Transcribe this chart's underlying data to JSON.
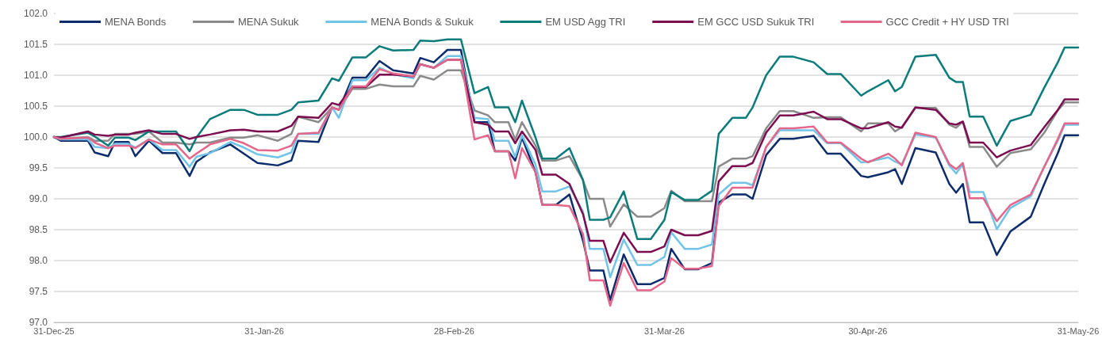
{
  "chart_data": {
    "type": "line",
    "x": [
      "2025-12-31",
      "2026-01-01",
      "2026-01-05",
      "2026-01-06",
      "2026-01-08",
      "2026-01-09",
      "2026-01-11",
      "2026-01-12",
      "2026-01-14",
      "2026-01-16",
      "2026-01-18",
      "2026-01-20",
      "2026-01-21",
      "2026-01-23",
      "2026-01-26",
      "2026-01-28",
      "2026-01-30",
      "2026-02-02",
      "2026-02-04",
      "2026-02-05",
      "2026-02-08",
      "2026-02-10",
      "2026-02-11",
      "2026-02-13",
      "2026-02-15",
      "2026-02-17",
      "2026-02-19",
      "2026-02-22",
      "2026-02-23",
      "2026-02-25",
      "2026-02-27",
      "2026-03-01",
      "2026-03-03",
      "2026-03-05",
      "2026-03-06",
      "2026-03-08",
      "2026-03-09",
      "2026-03-10",
      "2026-03-12",
      "2026-03-13",
      "2026-03-15",
      "2026-03-17",
      "2026-03-19",
      "2026-03-20",
      "2026-03-22",
      "2026-03-23",
      "2026-03-25",
      "2026-03-27",
      "2026-03-29",
      "2026-03-31",
      "2026-04-01",
      "2026-04-03",
      "2026-04-05",
      "2026-04-07",
      "2026-04-08",
      "2026-04-10",
      "2026-04-12",
      "2026-04-13",
      "2026-04-15",
      "2026-04-17",
      "2026-04-19",
      "2026-04-22",
      "2026-04-24",
      "2026-04-26",
      "2026-04-29",
      "2026-04-30",
      "2026-05-03",
      "2026-05-04",
      "2026-05-05",
      "2026-05-07",
      "2026-05-10",
      "2026-05-12",
      "2026-05-13",
      "2026-05-14",
      "2026-05-15",
      "2026-05-17",
      "2026-05-19",
      "2026-05-21",
      "2026-05-24",
      "2026-05-26",
      "2026-05-28",
      "2026-05-29",
      "2026-05-31"
    ],
    "series": [
      {
        "name": "MENA Bonds",
        "color": "#0d2c6b",
        "values": [
          100.0,
          99.94,
          99.94,
          99.75,
          99.69,
          99.92,
          99.92,
          99.69,
          99.94,
          99.74,
          99.74,
          99.37,
          99.6,
          99.75,
          99.88,
          99.73,
          99.58,
          99.54,
          99.62,
          99.94,
          99.92,
          100.48,
          100.44,
          100.96,
          100.96,
          101.23,
          101.08,
          101.03,
          101.28,
          101.21,
          101.41,
          101.41,
          100.24,
          100.24,
          99.77,
          99.77,
          99.62,
          99.99,
          99.43,
          98.9,
          98.9,
          99.07,
          98.32,
          97.84,
          97.84,
          97.36,
          98.1,
          97.62,
          97.62,
          97.72,
          98.19,
          97.86,
          97.86,
          97.96,
          98.94,
          99.07,
          99.07,
          99.0,
          99.71,
          99.97,
          99.97,
          100.02,
          99.73,
          99.73,
          99.37,
          99.35,
          99.43,
          99.48,
          99.24,
          99.82,
          99.75,
          99.24,
          99.1,
          99.24,
          98.62,
          98.62,
          98.09,
          98.47,
          98.71,
          99.24,
          99.74,
          100.03,
          100.03
        ]
      },
      {
        "name": "MENA Sukuk",
        "color": "#8a8a8a",
        "values": [
          100.0,
          99.97,
          100.0,
          99.94,
          99.94,
          100.05,
          100.05,
          100.05,
          100.09,
          99.91,
          99.91,
          99.88,
          99.91,
          99.91,
          99.99,
          99.99,
          100.03,
          99.94,
          100.05,
          100.33,
          100.24,
          100.48,
          100.44,
          100.78,
          100.78,
          100.85,
          100.82,
          100.82,
          100.99,
          100.93,
          101.08,
          101.08,
          100.43,
          100.35,
          100.24,
          100.24,
          99.96,
          100.24,
          99.86,
          99.62,
          99.62,
          99.69,
          99.3,
          99.0,
          99.0,
          98.55,
          98.91,
          98.71,
          98.71,
          98.85,
          99.13,
          98.96,
          98.96,
          98.96,
          99.52,
          99.65,
          99.65,
          99.69,
          100.14,
          100.42,
          100.42,
          100.31,
          100.32,
          100.32,
          100.09,
          100.22,
          100.22,
          100.09,
          100.16,
          100.47,
          100.47,
          100.2,
          100.15,
          100.25,
          99.84,
          99.84,
          99.52,
          99.74,
          99.8,
          100.07,
          100.43,
          100.56,
          100.56
        ]
      },
      {
        "name": "MENA Bonds & Sukuk",
        "color": "#72c3e8",
        "values": [
          100.0,
          99.96,
          99.96,
          99.84,
          99.82,
          99.89,
          99.89,
          99.83,
          99.96,
          99.79,
          99.79,
          99.52,
          99.68,
          99.74,
          99.92,
          99.83,
          99.72,
          99.67,
          99.75,
          100.05,
          100.05,
          100.48,
          100.31,
          100.92,
          100.92,
          101.12,
          101.02,
          100.95,
          101.18,
          101.12,
          101.31,
          101.31,
          100.31,
          100.29,
          99.94,
          99.94,
          99.68,
          100.03,
          99.55,
          99.12,
          99.12,
          99.2,
          98.79,
          98.19,
          98.19,
          97.73,
          98.34,
          97.93,
          97.93,
          98.06,
          98.46,
          98.19,
          98.19,
          98.26,
          99.07,
          99.26,
          99.26,
          99.22,
          99.84,
          100.11,
          100.11,
          100.11,
          99.9,
          99.9,
          99.59,
          99.6,
          99.67,
          99.6,
          99.56,
          100.04,
          99.99,
          99.54,
          99.41,
          99.56,
          99.11,
          99.11,
          98.51,
          98.85,
          99.04,
          99.52,
          99.94,
          100.2,
          100.2
        ]
      },
      {
        "name": "EM USD Agg TRI",
        "color": "#0b7b7b",
        "values": [
          100.0,
          100.0,
          100.07,
          100.01,
          99.86,
          99.99,
          99.99,
          99.95,
          100.09,
          100.09,
          100.09,
          99.77,
          99.99,
          100.29,
          100.44,
          100.44,
          100.36,
          100.36,
          100.44,
          100.56,
          100.59,
          100.95,
          100.91,
          101.29,
          101.29,
          101.47,
          101.4,
          101.41,
          101.56,
          101.55,
          101.58,
          101.58,
          100.71,
          100.81,
          100.48,
          100.48,
          100.24,
          100.59,
          99.99,
          99.65,
          99.65,
          99.82,
          99.3,
          98.66,
          98.66,
          98.7,
          99.12,
          98.35,
          98.35,
          98.66,
          99.11,
          98.98,
          98.98,
          99.13,
          100.05,
          100.31,
          100.31,
          100.48,
          101.0,
          101.3,
          101.3,
          101.21,
          101.02,
          101.02,
          100.67,
          100.74,
          100.92,
          100.74,
          100.81,
          101.3,
          101.33,
          100.96,
          100.89,
          100.89,
          100.33,
          100.33,
          99.86,
          100.26,
          100.36,
          100.8,
          101.21,
          101.45,
          101.45
        ]
      },
      {
        "name": "EM GCC USD Sukuk TRI",
        "color": "#7b0d50",
        "values": [
          100.0,
          99.99,
          100.09,
          100.04,
          100.02,
          100.04,
          100.04,
          100.07,
          100.11,
          100.05,
          100.05,
          99.97,
          100.0,
          100.04,
          100.11,
          100.12,
          100.09,
          100.09,
          100.18,
          100.33,
          100.31,
          100.55,
          100.52,
          100.81,
          100.81,
          101.01,
          101.01,
          100.98,
          101.18,
          101.12,
          101.25,
          101.25,
          100.24,
          100.2,
          100.09,
          100.09,
          99.9,
          100.09,
          99.79,
          99.39,
          99.39,
          99.24,
          98.75,
          98.32,
          98.32,
          97.97,
          98.45,
          98.14,
          98.14,
          98.23,
          98.5,
          98.41,
          98.41,
          98.48,
          99.28,
          99.53,
          99.53,
          99.58,
          100.07,
          100.35,
          100.35,
          100.41,
          100.29,
          100.29,
          100.14,
          100.14,
          100.24,
          100.17,
          100.15,
          100.48,
          100.44,
          100.22,
          100.2,
          100.25,
          99.91,
          99.91,
          99.67,
          99.78,
          99.87,
          100.16,
          100.44,
          100.61,
          100.61
        ]
      },
      {
        "name": "GCC Credit + HY USD TRI",
        "color": "#e4668a",
        "values": [
          100.0,
          99.97,
          99.99,
          99.91,
          99.82,
          99.86,
          99.86,
          99.82,
          99.96,
          99.88,
          99.88,
          99.65,
          99.73,
          99.88,
          99.97,
          99.9,
          99.79,
          99.78,
          99.86,
          100.05,
          100.07,
          100.48,
          100.44,
          100.82,
          100.82,
          101.1,
          101.03,
          100.98,
          101.18,
          101.12,
          101.25,
          101.25,
          99.96,
          100.03,
          99.77,
          99.77,
          99.33,
          99.82,
          99.43,
          98.9,
          98.9,
          98.88,
          98.43,
          97.68,
          97.68,
          97.27,
          97.96,
          97.52,
          97.52,
          97.66,
          98.04,
          97.87,
          97.87,
          97.91,
          98.88,
          99.18,
          99.18,
          99.18,
          99.84,
          100.14,
          100.14,
          100.17,
          99.91,
          99.91,
          99.65,
          99.59,
          99.73,
          99.65,
          99.54,
          100.07,
          100.0,
          99.56,
          99.48,
          99.58,
          99.01,
          99.01,
          98.64,
          98.9,
          99.07,
          99.52,
          99.97,
          100.22,
          100.22
        ]
      }
    ],
    "xlim": [
      "2025-12-31",
      "2026-05-31"
    ],
    "xticks": [
      {
        "value": "2025-12-31",
        "label": "31-Dec-25"
      },
      {
        "value": "2026-01-31",
        "label": "31-Jan-26"
      },
      {
        "value": "2026-02-28",
        "label": "28-Feb-26"
      },
      {
        "value": "2026-03-31",
        "label": "31-Mar-26"
      },
      {
        "value": "2026-04-30",
        "label": "30-Apr-26"
      },
      {
        "value": "2026-05-31",
        "label": "31-May-26"
      }
    ],
    "ylim": [
      97,
      102
    ],
    "yticks": [
      {
        "value": 97,
        "label": "97.0"
      },
      {
        "value": 97.5,
        "label": "97.5"
      },
      {
        "value": 98,
        "label": "98.0"
      },
      {
        "value": 98.5,
        "label": "98.5"
      },
      {
        "value": 99,
        "label": "99.0"
      },
      {
        "value": 99.5,
        "label": "99.5"
      },
      {
        "value": 100,
        "label": "100.0"
      },
      {
        "value": 100.5,
        "label": "100.5"
      },
      {
        "value": 101,
        "label": "101.0"
      },
      {
        "value": 101.5,
        "label": "101.5"
      },
      {
        "value": 102,
        "label": "102.0"
      }
    ],
    "grid": "y",
    "legend": "top",
    "marker": "none",
    "line_style": "solid"
  }
}
